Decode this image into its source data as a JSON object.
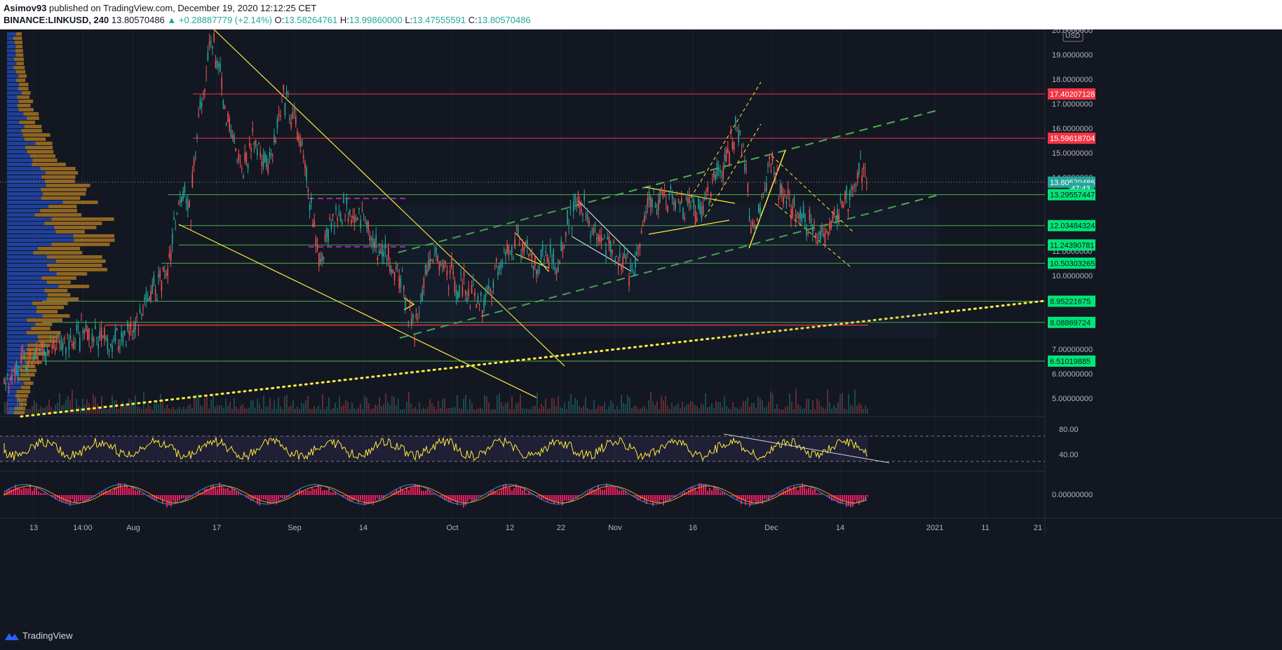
{
  "header": {
    "author": "Asimov93",
    "publish_text": "published on TradingView.com, December 19, 2020 12:12:25 CET",
    "symbol": "BINANCE:LINKUSD, 240",
    "last": "13.80570486",
    "change": "▲ +0.28887779 (+2.14%)",
    "o_label": "O:",
    "o_value": "13.58264761",
    "h_label": "H:",
    "h_value": "13.99860000",
    "l_label": "L:",
    "l_value": "13.47555591",
    "c_label": "C:",
    "c_value": "13.80570486"
  },
  "footer": {
    "brand": "TradingView"
  },
  "colors": {
    "background": "#131722",
    "grid": "#1e222d",
    "up": "#26a69a",
    "down": "#ef5350",
    "support": "#4caf50",
    "resistance": "#f23645",
    "trendline": "#ffeb3b",
    "channel": "#4caf50",
    "rsi": "#ffeb3b",
    "macd_hist": "#e91e63",
    "macd": "#2196f3",
    "signal": "#ff9800",
    "volume_profile_up": "#2962ff",
    "volume_profile_down": "#f5a623"
  },
  "chart_data": {
    "type": "candlestick",
    "currency": "USD",
    "y_axis": {
      "range": [
        4.6,
        20.1
      ],
      "ticks": [
        "20.0000000",
        "19.0000000",
        "18.0000000",
        "17.0000000",
        "16.0000000",
        "15.0000000",
        "14.0000000",
        "11.0000000",
        "10.0000000",
        "7.00000000",
        "6.00000000",
        "5.00000000"
      ]
    },
    "x_axis": {
      "ticks": [
        "13",
        "14:00",
        "Aug",
        "17",
        "Sep",
        "14",
        "Oct",
        "12",
        "22",
        "Nov",
        "16",
        "Dec",
        "14",
        "2021",
        "11",
        "21"
      ]
    },
    "price_markers": [
      {
        "label": "17.40207128",
        "value": 17.40207128,
        "kind": "resistance"
      },
      {
        "label": "15.59618704",
        "value": 15.59618704,
        "kind": "resistance"
      },
      {
        "label": "13.80570486",
        "value": 13.80570486,
        "kind": "last"
      },
      {
        "label": "47:43",
        "value": 13.55,
        "kind": "countdown"
      },
      {
        "label": "13.29557447",
        "value": 13.29557447,
        "kind": "support"
      },
      {
        "label": "12.03484324",
        "value": 12.03484324,
        "kind": "support"
      },
      {
        "label": "11.24390781",
        "value": 11.24390781,
        "kind": "support"
      },
      {
        "label": "10.50303265",
        "value": 10.50303265,
        "kind": "support"
      },
      {
        "label": "8.95221675",
        "value": 8.95221675,
        "kind": "support"
      },
      {
        "label": "8.08869724",
        "value": 8.08869724,
        "kind": "support"
      },
      {
        "label": "6.51019885",
        "value": 6.51019885,
        "kind": "support"
      }
    ],
    "price_path": [
      [
        0,
        5.8
      ],
      [
        60,
        6.8
      ],
      [
        120,
        7.6
      ],
      [
        160,
        7.2
      ],
      [
        195,
        8.0
      ],
      [
        210,
        9.0
      ],
      [
        240,
        10.3
      ],
      [
        250,
        12.5
      ],
      [
        262,
        13.8
      ],
      [
        272,
        12.4
      ],
      [
        280,
        16.0
      ],
      [
        292,
        17.5
      ],
      [
        300,
        19.8
      ],
      [
        310,
        18.7
      ],
      [
        322,
        16.4
      ],
      [
        345,
        14.2
      ],
      [
        360,
        15.6
      ],
      [
        385,
        14.5
      ],
      [
        405,
        17.2
      ],
      [
        425,
        15.9
      ],
      [
        440,
        13.3
      ],
      [
        455,
        10.5
      ],
      [
        470,
        12.2
      ],
      [
        495,
        12.8
      ],
      [
        515,
        12.5
      ],
      [
        535,
        11.2
      ],
      [
        565,
        10.3
      ],
      [
        592,
        7.7
      ],
      [
        605,
        9.8
      ],
      [
        620,
        10.8
      ],
      [
        655,
        9.6
      ],
      [
        690,
        8.9
      ],
      [
        710,
        10.3
      ],
      [
        738,
        11.6
      ],
      [
        760,
        10.5
      ],
      [
        785,
        10.9
      ],
      [
        795,
        10.1
      ],
      [
        808,
        12.1
      ],
      [
        825,
        13.0
      ],
      [
        858,
        11.3
      ],
      [
        905,
        10.1
      ],
      [
        925,
        13.2
      ],
      [
        965,
        13.0
      ],
      [
        995,
        12.5
      ],
      [
        1020,
        13.9
      ],
      [
        1040,
        15.0
      ],
      [
        1050,
        16.2
      ],
      [
        1065,
        14.3
      ],
      [
        1070,
        11.3
      ],
      [
        1088,
        13.5
      ],
      [
        1100,
        14.6
      ],
      [
        1112,
        13.3
      ],
      [
        1140,
        12.4
      ],
      [
        1165,
        11.8
      ],
      [
        1185,
        12.2
      ],
      [
        1205,
        12.9
      ],
      [
        1220,
        13.4
      ],
      [
        1226,
        14.6
      ],
      [
        1238,
        13.8
      ]
    ],
    "indicators": {
      "rsi": {
        "levels": [
          70,
          30
        ],
        "ticks": [
          "80.00",
          "40.00"
        ]
      },
      "macd": {
        "ticks": [
          "0.00000000"
        ]
      }
    }
  }
}
